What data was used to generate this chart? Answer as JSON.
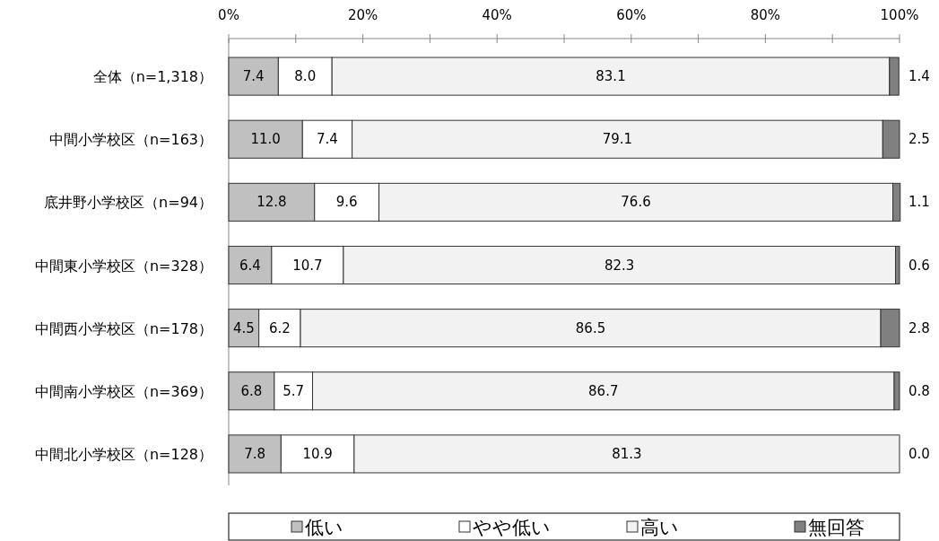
{
  "chart_data": {
    "type": "bar",
    "orientation": "horizontal",
    "stacked": true,
    "grid": false,
    "legend": "bottom",
    "categories": [
      "全体（n=1,318）",
      "中間小学校区（n=163）",
      "底井野小学校区（n=94）",
      "中間東小学校区（n=328）",
      "中間西小学校区（n=178）",
      "中間南小学校区（n=369）",
      "中間北小学校区（n=128）"
    ],
    "xlim": [
      0,
      100
    ],
    "xticks": [
      {
        "value": 0,
        "label": "0%"
      },
      {
        "value": 10,
        "label": null
      },
      {
        "value": 20,
        "label": "20%"
      },
      {
        "value": 30,
        "label": null
      },
      {
        "value": 40,
        "label": "40%"
      },
      {
        "value": 50,
        "label": null
      },
      {
        "value": 60,
        "label": "60%"
      },
      {
        "value": 70,
        "label": null
      },
      {
        "value": 80,
        "label": "80%"
      },
      {
        "value": 90,
        "label": null
      },
      {
        "value": 100,
        "label": "100%"
      }
    ],
    "series": [
      {
        "name": "低い",
        "color": "#c0c0c0",
        "values": [
          7.4,
          11.0,
          12.8,
          6.4,
          4.5,
          6.8,
          7.8
        ],
        "value_labels": [
          "7.4",
          "11.0",
          "12.8",
          "6.4",
          "4.5",
          "6.8",
          "7.8"
        ]
      },
      {
        "name": "やや低い",
        "color": "#ffffff",
        "values": [
          8.0,
          7.4,
          9.6,
          10.7,
          6.2,
          5.7,
          10.9
        ],
        "value_labels": [
          "8.0",
          "7.4",
          "9.6",
          "10.7",
          "6.2",
          "5.7",
          "10.9"
        ]
      },
      {
        "name": "高い",
        "color": "#f2f2f2",
        "values": [
          83.1,
          79.1,
          76.6,
          82.3,
          86.5,
          86.7,
          81.3
        ],
        "value_labels": [
          "83.1",
          "79.1",
          "76.6",
          "82.3",
          "86.5",
          "86.7",
          "81.3"
        ]
      },
      {
        "name": "無回答",
        "color": "#808080",
        "values": [
          1.4,
          2.5,
          1.1,
          0.6,
          2.8,
          0.8,
          0.0
        ],
        "value_labels": [
          "1.4",
          "2.5",
          "1.1",
          "0.6",
          "2.8",
          "0.8",
          "0.0"
        ]
      }
    ]
  }
}
